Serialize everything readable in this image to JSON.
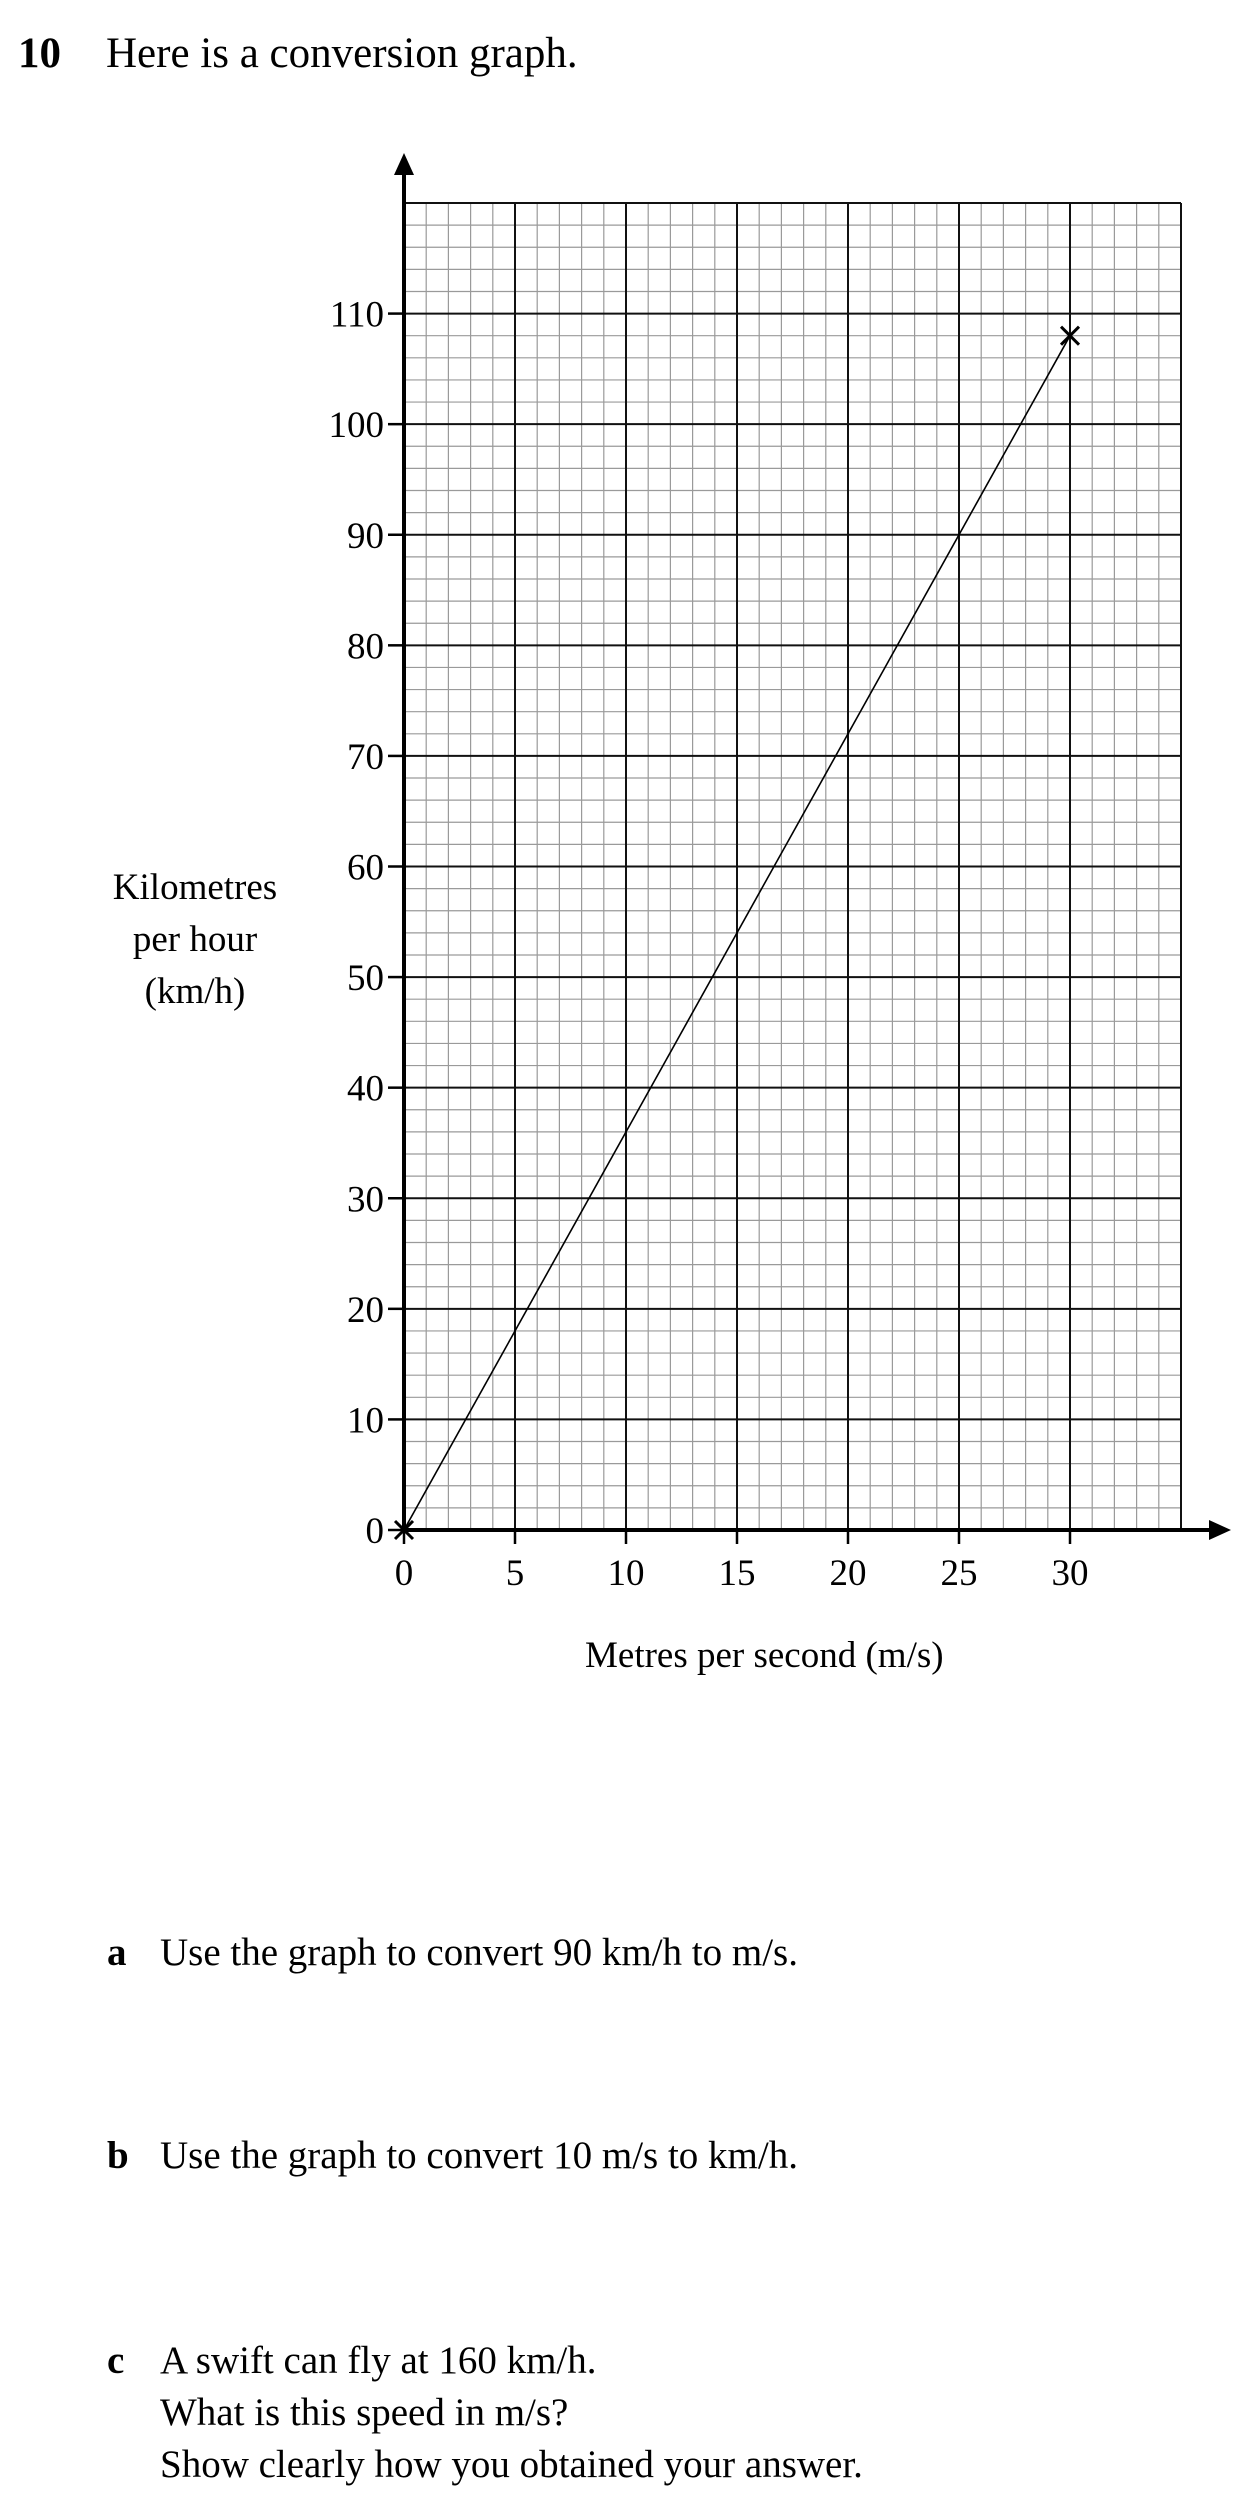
{
  "question": {
    "number": "10",
    "intro": "Here is a conversion graph."
  },
  "chart_data": {
    "type": "line",
    "xlabel": "Metres per second (m/s)",
    "ylabel_lines": [
      "Kilometres",
      "per hour",
      "(km/h)"
    ],
    "xlim": [
      0,
      35
    ],
    "ylim": [
      0,
      120
    ],
    "x_ticks": [
      "0",
      "5",
      "10",
      "15",
      "20",
      "25",
      "30"
    ],
    "y_ticks": [
      "0",
      "10",
      "20",
      "30",
      "40",
      "50",
      "60",
      "70",
      "80",
      "90",
      "100",
      "110"
    ],
    "grid": true,
    "series": [
      {
        "x": [
          0,
          30
        ],
        "y": [
          0,
          108
        ]
      }
    ],
    "marked_points": [
      {
        "x": 0,
        "y": 0
      },
      {
        "x": 30,
        "y": 108
      }
    ]
  },
  "parts": [
    {
      "letter": "a",
      "lines": [
        "Use the graph to convert 90 km/h to m/s."
      ]
    },
    {
      "letter": "b",
      "lines": [
        "Use the graph to convert 10 m/s to km/h."
      ]
    },
    {
      "letter": "c",
      "lines": [
        "A swift can fly at 160 km/h.",
        "What is this speed in m/s?",
        "Show clearly how you obtained your answer."
      ]
    }
  ]
}
